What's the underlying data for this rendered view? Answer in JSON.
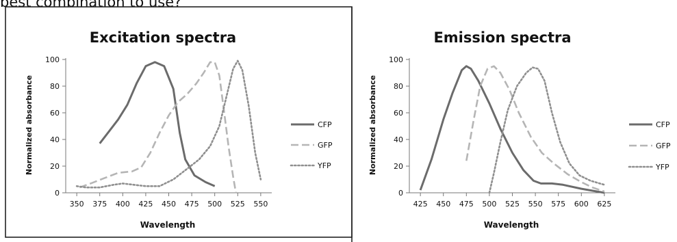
{
  "page": {
    "heading": "best combination to use?"
  },
  "chart_data": [
    {
      "type": "line",
      "title": "Excitation spectra",
      "xlabel": "Wavelength",
      "ylabel": "Normalized absorbance",
      "xlim": [
        338,
        562
      ],
      "ylim": [
        0,
        100
      ],
      "x_ticks": [
        350,
        375,
        400,
        425,
        450,
        475,
        500,
        525,
        550
      ],
      "y_ticks": [
        0,
        20,
        40,
        60,
        80,
        100
      ],
      "grid": false,
      "legend_position": "right",
      "series": [
        {
          "name": "CFP",
          "style": "solid",
          "color": "#6b6b6b",
          "points": [
            [
              375,
              37
            ],
            [
              385,
              46
            ],
            [
              395,
              55
            ],
            [
              405,
              66
            ],
            [
              415,
              82
            ],
            [
              425,
              95
            ],
            [
              435,
              98
            ],
            [
              445,
              95
            ],
            [
              455,
              78
            ],
            [
              462,
              45
            ],
            [
              468,
              25
            ],
            [
              478,
              13
            ],
            [
              490,
              8
            ],
            [
              500,
              5
            ]
          ]
        },
        {
          "name": "GFP",
          "style": "dashed",
          "color": "#b5b5b5",
          "points": [
            [
              353,
              4
            ],
            [
              365,
              7
            ],
            [
              380,
              11
            ],
            [
              395,
              15
            ],
            [
              410,
              16
            ],
            [
              420,
              19
            ],
            [
              430,
              30
            ],
            [
              440,
              45
            ],
            [
              450,
              58
            ],
            [
              460,
              68
            ],
            [
              470,
              74
            ],
            [
              480,
              82
            ],
            [
              488,
              90
            ],
            [
              495,
              98
            ],
            [
              500,
              98
            ],
            [
              505,
              88
            ],
            [
              510,
              62
            ],
            [
              515,
              35
            ],
            [
              520,
              12
            ],
            [
              523,
              0
            ]
          ]
        },
        {
          "name": "YFP",
          "style": "dotted",
          "color": "#8f8f8f",
          "points": [
            [
              350,
              5
            ],
            [
              360,
              4
            ],
            [
              375,
              4
            ],
            [
              390,
              6
            ],
            [
              400,
              7
            ],
            [
              412,
              6
            ],
            [
              425,
              5
            ],
            [
              440,
              5
            ],
            [
              455,
              10
            ],
            [
              470,
              18
            ],
            [
              483,
              25
            ],
            [
              495,
              35
            ],
            [
              505,
              50
            ],
            [
              513,
              73
            ],
            [
              520,
              93
            ],
            [
              525,
              99
            ],
            [
              530,
              92
            ],
            [
              537,
              65
            ],
            [
              544,
              30
            ],
            [
              550,
              10
            ]
          ]
        }
      ]
    },
    {
      "type": "line",
      "title": "Emission spectra",
      "xlabel": "Wavelength",
      "ylabel": "Normalized absorbance",
      "xlim": [
        413,
        637
      ],
      "ylim": [
        0,
        100
      ],
      "x_ticks": [
        425,
        450,
        475,
        500,
        525,
        550,
        575,
        600,
        625
      ],
      "y_ticks": [
        0,
        20,
        40,
        60,
        80,
        100
      ],
      "grid": false,
      "legend_position": "right",
      "series": [
        {
          "name": "CFP",
          "style": "solid",
          "color": "#6b6b6b",
          "points": [
            [
              425,
              2
            ],
            [
              437,
              25
            ],
            [
              450,
              55
            ],
            [
              460,
              75
            ],
            [
              470,
              92
            ],
            [
              475,
              95
            ],
            [
              480,
              93
            ],
            [
              488,
              84
            ],
            [
              500,
              67
            ],
            [
              512,
              48
            ],
            [
              525,
              30
            ],
            [
              537,
              17
            ],
            [
              548,
              9
            ],
            [
              556,
              7
            ],
            [
              568,
              7
            ],
            [
              580,
              6
            ],
            [
              600,
              3
            ],
            [
              625,
              0
            ]
          ]
        },
        {
          "name": "GFP",
          "style": "dashed",
          "color": "#b5b5b5",
          "points": [
            [
              475,
              24
            ],
            [
              483,
              55
            ],
            [
              490,
              80
            ],
            [
              498,
              93
            ],
            [
              505,
              95
            ],
            [
              512,
              90
            ],
            [
              522,
              77
            ],
            [
              532,
              60
            ],
            [
              545,
              42
            ],
            [
              557,
              30
            ],
            [
              570,
              22
            ],
            [
              585,
              14
            ],
            [
              600,
              8
            ],
            [
              612,
              4
            ],
            [
              625,
              1
            ]
          ]
        },
        {
          "name": "YFP",
          "style": "dotted",
          "color": "#8f8f8f",
          "points": [
            [
              500,
              0
            ],
            [
              505,
              15
            ],
            [
              512,
              38
            ],
            [
              520,
              62
            ],
            [
              530,
              80
            ],
            [
              540,
              90
            ],
            [
              547,
              94
            ],
            [
              553,
              93
            ],
            [
              560,
              84
            ],
            [
              568,
              60
            ],
            [
              577,
              38
            ],
            [
              587,
              22
            ],
            [
              598,
              13
            ],
            [
              610,
              9
            ],
            [
              625,
              6
            ]
          ]
        }
      ]
    }
  ]
}
